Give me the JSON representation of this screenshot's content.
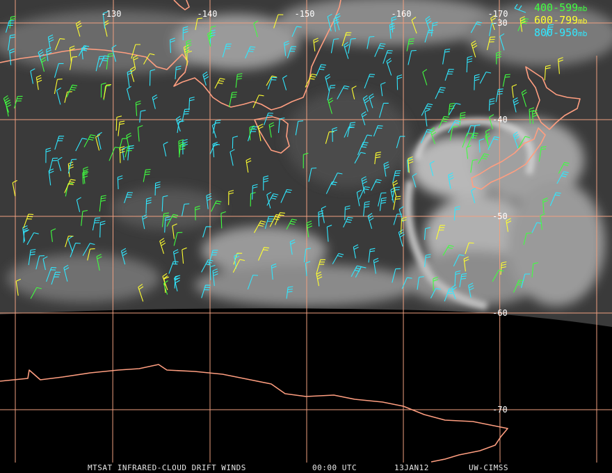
{
  "map": {
    "lon_labels": [
      "-130",
      "-140",
      "-150",
      "-160",
      "-170"
    ],
    "lat_labels": [
      "-30",
      "-40",
      "-50",
      "-60",
      "-70"
    ]
  },
  "legend": [
    {
      "range": "400-599",
      "unit": "mb",
      "color": "#40ff40"
    },
    {
      "range": "600-799",
      "unit": "mb",
      "color": "#ffff30"
    },
    {
      "range": "800-950",
      "unit": "mb",
      "color": "#30e8ff"
    }
  ],
  "footer": {
    "product": "MTSAT INFRARED-CLOUD DRIFT WINDS",
    "time": "00:00 UTC",
    "date": "13JAN12",
    "source": "UW-CIMSS"
  }
}
